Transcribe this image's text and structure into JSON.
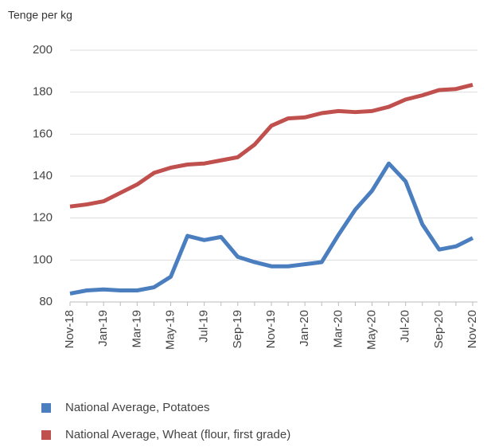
{
  "chart_data": {
    "type": "line",
    "ylabel": "Tenge per kg",
    "categories": [
      "Nov-18",
      null,
      "Jan-19",
      null,
      "Mar-19",
      null,
      "May-19",
      null,
      "Jul-19",
      null,
      "Sep-19",
      null,
      "Nov-19",
      null,
      "Jan-20",
      null,
      "Mar-20",
      null,
      "May-20",
      null,
      "Jul-20",
      null,
      "Sep-20",
      null,
      "Nov-20"
    ],
    "series": [
      {
        "name": "National Average, Potatoes",
        "color": "#4a7ebf",
        "values": [
          84,
          85.5,
          86,
          85.5,
          85.5,
          87,
          92,
          111.5,
          109.5,
          111,
          101.5,
          99,
          97,
          97,
          98,
          99,
          112,
          124,
          133,
          146,
          137.5,
          117,
          105,
          106.5,
          110.5
        ]
      },
      {
        "name": "National Average, Wheat (flour, first grade)",
        "color": "#c0504d",
        "values": [
          125.5,
          126.5,
          128,
          132,
          136,
          141.5,
          144,
          145.5,
          146,
          147.5,
          149,
          155,
          164,
          167.5,
          168,
          170,
          171,
          170.5,
          171,
          173,
          176.5,
          178.5,
          181,
          181.5,
          183.5
        ]
      }
    ],
    "ylim": [
      80,
      200
    ],
    "yticks": [
      80,
      100,
      120,
      140,
      160,
      180,
      200
    ],
    "grid": true
  }
}
